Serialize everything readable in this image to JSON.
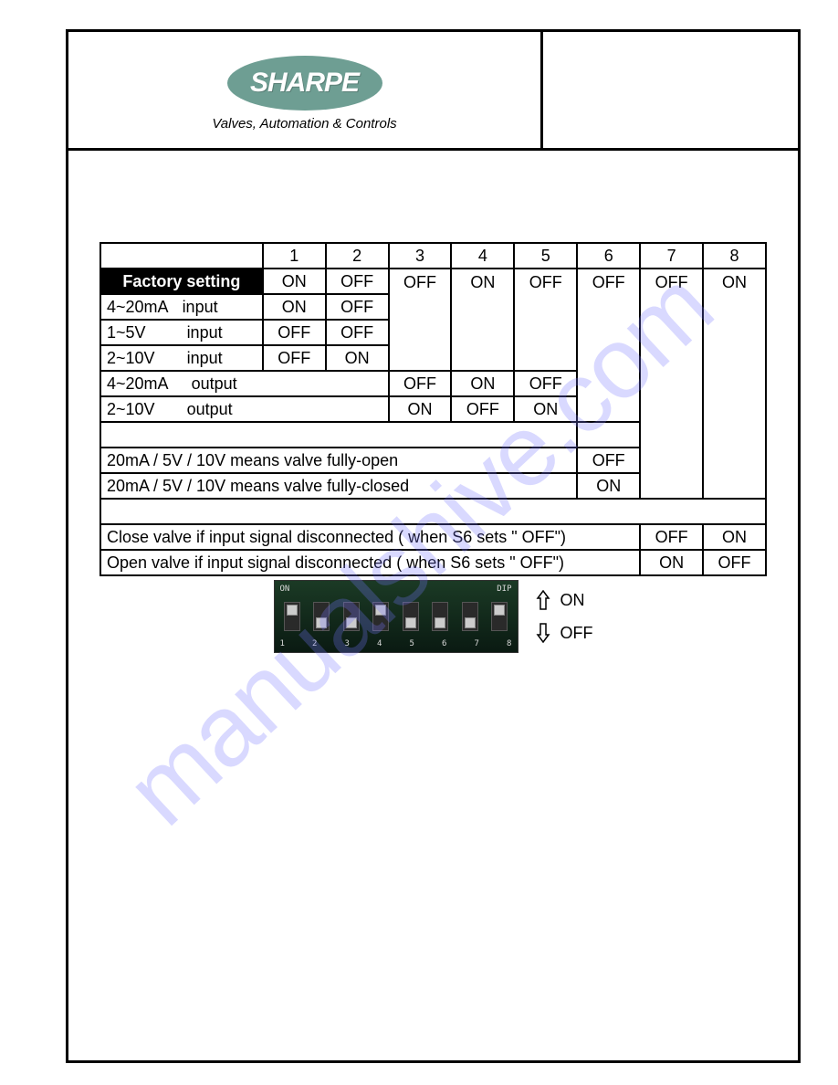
{
  "logo": {
    "brand_text": "SHARPE",
    "reg_mark": "®",
    "tagline": "Valves, Automation & Controls",
    "ellipse_color": "#6e9e93"
  },
  "watermark": {
    "text": "manualshive.com",
    "color_rgba": "rgba(120,120,255,0.28)"
  },
  "table": {
    "col_headers": [
      "1",
      "2",
      "3",
      "4",
      "5",
      "6",
      "7",
      "8"
    ],
    "factory_label": "Factory setting",
    "factory_vals": [
      "ON",
      "OFF",
      "OFF",
      "ON",
      "OFF",
      "OFF",
      "OFF",
      "ON"
    ],
    "input_rows": [
      {
        "label_a": "4~20mA",
        "label_b": "input",
        "vals": [
          "ON",
          "OFF"
        ]
      },
      {
        "label_a": "1~5V",
        "label_b": "input",
        "vals": [
          "OFF",
          "OFF"
        ]
      },
      {
        "label_a": "2~10V",
        "label_b": "input",
        "vals": [
          "OFF",
          "ON"
        ]
      }
    ],
    "output_rows": [
      {
        "label_a": "4~20mA",
        "label_b": "output",
        "vals": [
          "OFF",
          "ON",
          "OFF"
        ]
      },
      {
        "label_a": "2~10V",
        "label_b": "output",
        "vals": [
          "ON",
          "OFF",
          "ON"
        ]
      }
    ],
    "direction_rows": [
      {
        "label": "20mA / 5V / 10V means valve fully-open",
        "val": "OFF"
      },
      {
        "label": "20mA / 5V / 10V means valve fully-closed",
        "val": "ON"
      }
    ],
    "fail_rows": [
      {
        "label": "Close valve if input signal disconnected ( when S6 sets \" OFF\")",
        "v7": "OFF",
        "v8": "ON"
      },
      {
        "label": "Open valve if input signal disconnected ( when S6 sets \" OFF\")",
        "v7": "ON",
        "v8": "OFF"
      }
    ]
  },
  "dip_photo": {
    "top_left": "ON",
    "top_right": "DIP",
    "numbers": [
      "1",
      "2",
      "3",
      "4",
      "5",
      "6",
      "7",
      "8"
    ],
    "positions": [
      "up",
      "down",
      "down",
      "up",
      "down",
      "down",
      "down",
      "up"
    ]
  },
  "dip_legend": {
    "on_label": "ON",
    "off_label": "OFF"
  },
  "col_widths": {
    "label": 160,
    "num": 62
  }
}
